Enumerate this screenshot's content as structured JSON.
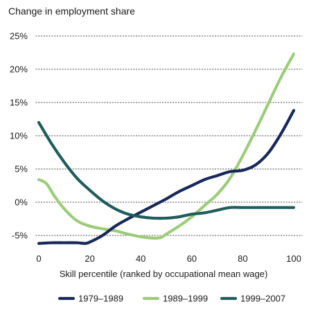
{
  "chart_data": {
    "type": "line",
    "title": "",
    "ylabel": "Change in employment share",
    "xlabel": "Skill percentile (ranked by occupational mean wage)",
    "xlim": [
      0,
      100
    ],
    "ylim": [
      -5,
      25
    ],
    "x_ticks": [
      0,
      20,
      40,
      60,
      80,
      100
    ],
    "x_tick_labels": [
      "0",
      "20",
      "40",
      "60",
      "80",
      "100"
    ],
    "y_ticks": [
      -5,
      0,
      5,
      10,
      15,
      20,
      25
    ],
    "y_tick_labels": [
      "-5%",
      "0%",
      "5%",
      "10%",
      "15%",
      "20%",
      "25%"
    ],
    "grid": "horizontal dotted",
    "legend_position": "bottom",
    "series": [
      {
        "name": "1979–1989",
        "color": "#17295a",
        "x": [
          0,
          5,
          10,
          15,
          18,
          20,
          25,
          30,
          35,
          40,
          45,
          50,
          55,
          60,
          65,
          70,
          75,
          80,
          85,
          90,
          95,
          100
        ],
        "y": [
          -6.2,
          -6.1,
          -6.1,
          -6.1,
          -6.2,
          -6.0,
          -5.0,
          -3.6,
          -2.5,
          -1.5,
          -0.5,
          0.5,
          1.6,
          2.5,
          3.4,
          4.0,
          4.6,
          4.8,
          5.6,
          7.4,
          10.3,
          13.8
        ]
      },
      {
        "name": "1989–1999",
        "color": "#9ccc7a",
        "x": [
          0,
          3,
          6,
          10,
          15,
          20,
          25,
          30,
          35,
          40,
          45,
          48,
          50,
          55,
          60,
          65,
          70,
          75,
          80,
          85,
          90,
          95,
          100
        ],
        "y": [
          3.4,
          2.8,
          1.0,
          -1.0,
          -2.8,
          -3.6,
          -4.0,
          -4.3,
          -4.8,
          -5.2,
          -5.4,
          -5.3,
          -4.8,
          -3.6,
          -2.2,
          -0.5,
          1.2,
          3.6,
          7.0,
          10.8,
          14.8,
          18.8,
          22.3
        ]
      },
      {
        "name": "1999–2007",
        "color": "#1f5c5c",
        "x": [
          0,
          5,
          10,
          15,
          20,
          25,
          30,
          35,
          40,
          45,
          50,
          55,
          60,
          65,
          70,
          75,
          80,
          85,
          90,
          95,
          100
        ],
        "y": [
          12.0,
          8.8,
          6.0,
          3.6,
          1.8,
          0.2,
          -1.0,
          -1.8,
          -2.2,
          -2.4,
          -2.4,
          -2.2,
          -1.8,
          -1.6,
          -1.2,
          -0.8,
          -0.8,
          -0.8,
          -0.8,
          -0.8,
          -0.8
        ]
      }
    ]
  }
}
